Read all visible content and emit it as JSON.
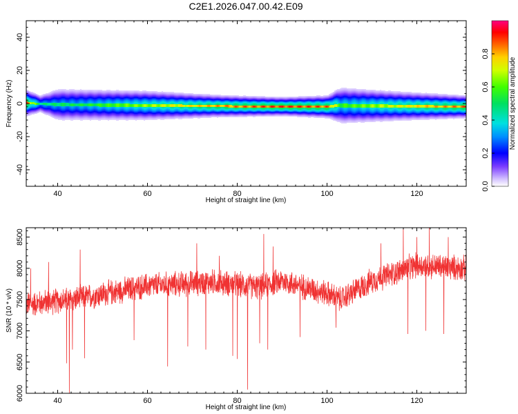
{
  "title": "C2E1.2026.047.00.42.E09",
  "chart_data": [
    {
      "type": "heatmap",
      "xlabel": "Height of straight line (km)",
      "ylabel": "Frequency (Hz)",
      "xlim": [
        33,
        131
      ],
      "ylim": [
        -50,
        50
      ],
      "xticks": [
        40,
        60,
        80,
        100,
        120
      ],
      "yticks": [
        -40,
        -20,
        0,
        20,
        40
      ],
      "colorbar": {
        "label": "Normalized spectral amplitude",
        "range": [
          0,
          1
        ],
        "ticks": [
          "0.0",
          "0.2",
          "0.4",
          "0.6",
          "0.8"
        ],
        "tick_values": [
          0,
          0.2,
          0.4,
          0.6,
          0.8
        ]
      },
      "band": {
        "center_hz": [
          {
            "x": 33,
            "f": 0.5
          },
          {
            "x": 36,
            "f": 0.0
          },
          {
            "x": 40,
            "f": -0.5
          },
          {
            "x": 60,
            "f": -1.0
          },
          {
            "x": 80,
            "f": -1.5
          },
          {
            "x": 100,
            "f": -1.8
          },
          {
            "x": 102,
            "f": -1.0
          },
          {
            "x": 120,
            "f": -1.5
          },
          {
            "x": 131,
            "f": -1.8
          }
        ],
        "half_width_hz": [
          {
            "x": 33,
            "w": 3.5
          },
          {
            "x": 36,
            "w": 2.5
          },
          {
            "x": 40,
            "w": 4.5
          },
          {
            "x": 60,
            "w": 4.0
          },
          {
            "x": 75,
            "w": 3.0
          },
          {
            "x": 90,
            "w": 2.5
          },
          {
            "x": 100,
            "w": 3.0
          },
          {
            "x": 103,
            "w": 5.0
          },
          {
            "x": 115,
            "w": 4.0
          },
          {
            "x": 131,
            "w": 3.0
          }
        ],
        "peak_amplitude": [
          {
            "x": 33,
            "a": 0.9
          },
          {
            "x": 36,
            "a": 0.5
          },
          {
            "x": 45,
            "a": 0.55
          },
          {
            "x": 60,
            "a": 0.7
          },
          {
            "x": 75,
            "a": 0.85
          },
          {
            "x": 90,
            "a": 0.95
          },
          {
            "x": 100,
            "a": 0.9
          },
          {
            "x": 103,
            "a": 0.6
          },
          {
            "x": 115,
            "a": 0.75
          },
          {
            "x": 131,
            "a": 0.9
          }
        ]
      }
    },
    {
      "type": "line",
      "xlabel": "Height of straight line (km)",
      "ylabel": "SNR (10 * v/v)",
      "xlim": [
        33,
        131
      ],
      "ylim": [
        6000,
        8650
      ],
      "xticks": [
        40,
        60,
        80,
        100,
        120
      ],
      "yticks": [
        6000,
        6500,
        7000,
        7500,
        8000,
        8500
      ],
      "color": "#f03232",
      "trend": [
        {
          "x": 33,
          "y": 7420
        },
        {
          "x": 45,
          "y": 7520
        },
        {
          "x": 60,
          "y": 7720
        },
        {
          "x": 75,
          "y": 7780
        },
        {
          "x": 85,
          "y": 7700
        },
        {
          "x": 90,
          "y": 7800
        },
        {
          "x": 100,
          "y": 7600
        },
        {
          "x": 103,
          "y": 7500
        },
        {
          "x": 110,
          "y": 7800
        },
        {
          "x": 120,
          "y": 8050
        },
        {
          "x": 131,
          "y": 8000
        }
      ],
      "noise_amplitude": 170,
      "n_samples": 2400,
      "dips": [
        {
          "x": 42.6,
          "y": 6000
        },
        {
          "x": 42.0,
          "y": 6480
        },
        {
          "x": 43.3,
          "y": 6700
        },
        {
          "x": 46,
          "y": 6560
        },
        {
          "x": 57,
          "y": 6850
        },
        {
          "x": 64.5,
          "y": 6430
        },
        {
          "x": 69,
          "y": 6750
        },
        {
          "x": 73,
          "y": 6700
        },
        {
          "x": 79,
          "y": 6600
        },
        {
          "x": 80,
          "y": 6550
        },
        {
          "x": 82.3,
          "y": 6060
        },
        {
          "x": 85,
          "y": 6800
        },
        {
          "x": 86.8,
          "y": 6700
        },
        {
          "x": 94,
          "y": 6900
        },
        {
          "x": 102,
          "y": 7050
        },
        {
          "x": 118,
          "y": 6950
        },
        {
          "x": 122,
          "y": 7000
        },
        {
          "x": 126,
          "y": 6950
        }
      ],
      "spikes": [
        {
          "x": 34,
          "y": 8000
        },
        {
          "x": 38,
          "y": 8100
        },
        {
          "x": 45,
          "y": 8300
        },
        {
          "x": 71,
          "y": 8400
        },
        {
          "x": 76,
          "y": 8200
        },
        {
          "x": 85.9,
          "y": 8550
        },
        {
          "x": 88,
          "y": 8350
        },
        {
          "x": 112,
          "y": 8400
        },
        {
          "x": 117,
          "y": 8650
        },
        {
          "x": 120,
          "y": 8500
        },
        {
          "x": 122.8,
          "y": 8650
        },
        {
          "x": 127,
          "y": 8500
        }
      ]
    }
  ]
}
